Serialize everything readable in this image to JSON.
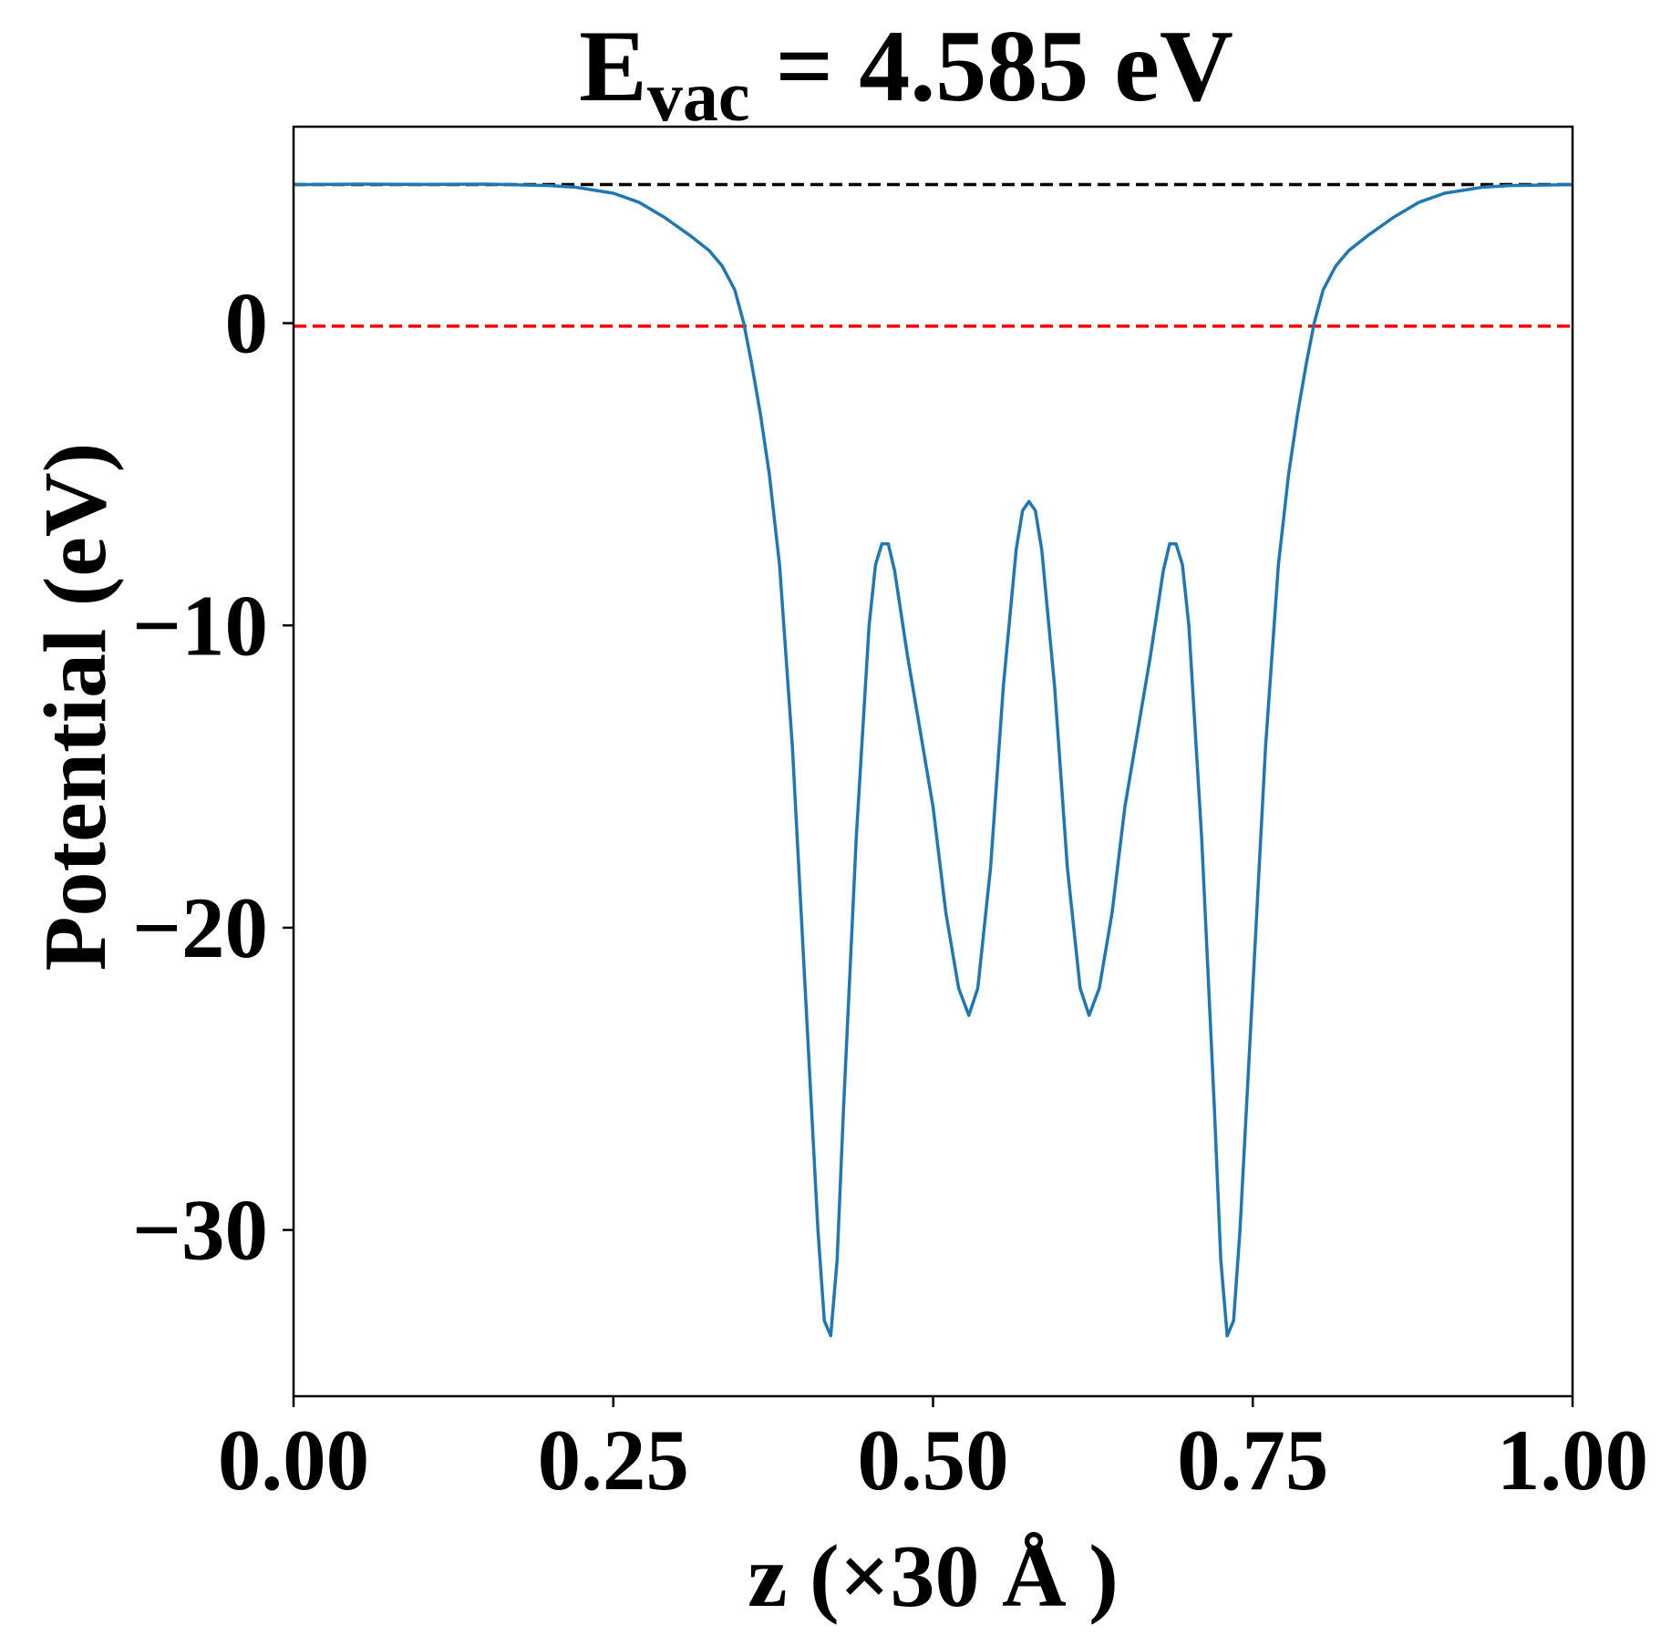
{
  "chart_data": {
    "type": "line",
    "title": {
      "main": "E",
      "subscript": "vac",
      "rest": " = 4.585 eV"
    },
    "xlabel": "z (×30 Å )",
    "ylabel": "Potential (eV)",
    "xlim": [
      0.0,
      1.0
    ],
    "ylim": [
      -35.5,
      6.5
    ],
    "xticks": [
      {
        "value": 0.0,
        "label": "0.00"
      },
      {
        "value": 0.25,
        "label": "0.25"
      },
      {
        "value": 0.5,
        "label": "0.50"
      },
      {
        "value": 0.75,
        "label": "0.75"
      },
      {
        "value": 1.0,
        "label": "1.00"
      }
    ],
    "yticks": [
      {
        "value": 0,
        "label": "0"
      },
      {
        "value": -10,
        "label": "−10"
      },
      {
        "value": -20,
        "label": "−20"
      },
      {
        "value": -30,
        "label": "−30"
      }
    ],
    "grid": false,
    "reference_lines": [
      {
        "y": 4.585,
        "color": "#000000",
        "style": "dashed"
      },
      {
        "y": -0.1,
        "color": "#ff0000",
        "style": "dashed"
      }
    ],
    "series": [
      {
        "color": "#1f77b4",
        "points": [
          [
            0.0,
            4.58
          ],
          [
            0.05,
            4.6
          ],
          [
            0.1,
            4.59
          ],
          [
            0.15,
            4.6
          ],
          [
            0.2,
            4.55
          ],
          [
            0.22,
            4.5
          ],
          [
            0.25,
            4.3
          ],
          [
            0.27,
            4.0
          ],
          [
            0.29,
            3.5
          ],
          [
            0.31,
            2.9
          ],
          [
            0.325,
            2.4
          ],
          [
            0.335,
            1.9
          ],
          [
            0.345,
            1.1
          ],
          [
            0.352,
            0.0
          ],
          [
            0.358,
            -1.3
          ],
          [
            0.365,
            -3.0
          ],
          [
            0.372,
            -5.0
          ],
          [
            0.38,
            -8.0
          ],
          [
            0.39,
            -14.0
          ],
          [
            0.4,
            -22.0
          ],
          [
            0.41,
            -30.0
          ],
          [
            0.415,
            -33.0
          ],
          [
            0.42,
            -33.5
          ],
          [
            0.425,
            -31.0
          ],
          [
            0.43,
            -26.0
          ],
          [
            0.44,
            -17.0
          ],
          [
            0.45,
            -10.0
          ],
          [
            0.455,
            -8.0
          ],
          [
            0.46,
            -7.3
          ],
          [
            0.465,
            -7.3
          ],
          [
            0.47,
            -8.2
          ],
          [
            0.48,
            -11.0
          ],
          [
            0.49,
            -13.5
          ],
          [
            0.5,
            -16.0
          ],
          [
            0.51,
            -19.5
          ],
          [
            0.52,
            -22.0
          ],
          [
            0.528,
            -22.9
          ],
          [
            0.535,
            -22.0
          ],
          [
            0.545,
            -18.0
          ],
          [
            0.555,
            -12.0
          ],
          [
            0.565,
            -7.5
          ],
          [
            0.57,
            -6.2
          ],
          [
            0.575,
            -5.9
          ],
          [
            0.58,
            -6.2
          ],
          [
            0.585,
            -7.5
          ],
          [
            0.595,
            -12.0
          ],
          [
            0.605,
            -18.0
          ],
          [
            0.615,
            -22.0
          ],
          [
            0.622,
            -22.9
          ],
          [
            0.63,
            -22.0
          ],
          [
            0.64,
            -19.5
          ],
          [
            0.65,
            -16.0
          ],
          [
            0.66,
            -13.5
          ],
          [
            0.67,
            -11.0
          ],
          [
            0.68,
            -8.2
          ],
          [
            0.685,
            -7.3
          ],
          [
            0.69,
            -7.3
          ],
          [
            0.695,
            -8.0
          ],
          [
            0.7,
            -10.0
          ],
          [
            0.71,
            -17.0
          ],
          [
            0.72,
            -26.0
          ],
          [
            0.725,
            -31.0
          ],
          [
            0.73,
            -33.5
          ],
          [
            0.735,
            -33.0
          ],
          [
            0.74,
            -30.0
          ],
          [
            0.75,
            -22.0
          ],
          [
            0.76,
            -14.0
          ],
          [
            0.77,
            -8.0
          ],
          [
            0.778,
            -5.0
          ],
          [
            0.785,
            -3.0
          ],
          [
            0.792,
            -1.3
          ],
          [
            0.798,
            0.0
          ],
          [
            0.805,
            1.1
          ],
          [
            0.815,
            1.9
          ],
          [
            0.825,
            2.4
          ],
          [
            0.84,
            2.9
          ],
          [
            0.86,
            3.5
          ],
          [
            0.88,
            4.0
          ],
          [
            0.9,
            4.3
          ],
          [
            0.93,
            4.5
          ],
          [
            0.95,
            4.55
          ],
          [
            1.0,
            4.58
          ]
        ]
      }
    ]
  }
}
